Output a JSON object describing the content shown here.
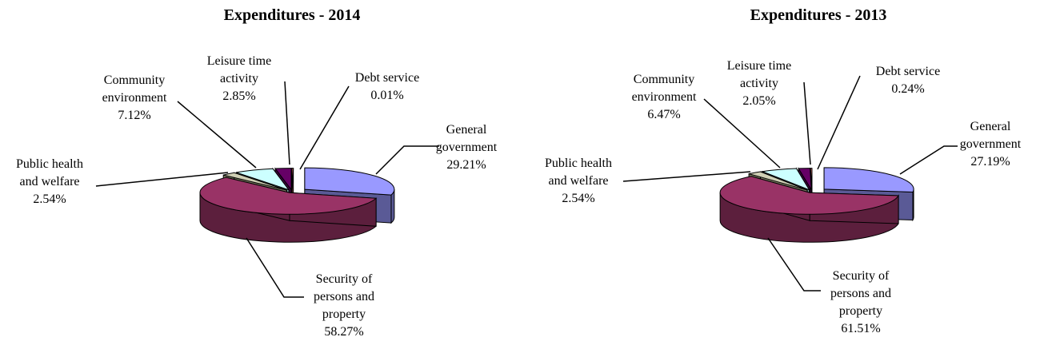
{
  "chart_data": [
    {
      "type": "pie",
      "style": "3d-exploded",
      "title": "Expenditures - 2014",
      "slices": [
        {
          "label": [
            "General",
            "government"
          ],
          "value": 29.21,
          "value_text": "29.21%",
          "color": "#9999ff",
          "side_color": "#5a5a96"
        },
        {
          "label": [
            "Security of",
            "persons and",
            "property"
          ],
          "value": 58.27,
          "value_text": "58.27%",
          "color": "#993366",
          "side_color": "#5c1f3d"
        },
        {
          "label": [
            "Public health",
            "and welfare"
          ],
          "value": 2.54,
          "value_text": "2.54%",
          "color": "#cfcfb4",
          "side_color": "#7a7a60"
        },
        {
          "label": [
            "Community",
            "environment"
          ],
          "value": 7.12,
          "value_text": "7.12%",
          "color": "#ccffff",
          "side_color": "#7fa6a6"
        },
        {
          "label": [
            "Leisure time",
            "activity"
          ],
          "value": 2.85,
          "value_text": "2.85%",
          "color": "#660066",
          "side_color": "#3d003d"
        },
        {
          "label": [
            "Debt service"
          ],
          "value": 0.01,
          "value_text": "0.01%",
          "color": "#ff8080",
          "side_color": "#994d4d"
        }
      ]
    },
    {
      "type": "pie",
      "style": "3d-exploded",
      "title": "Expenditures - 2013",
      "slices": [
        {
          "label": [
            "General",
            "government"
          ],
          "value": 27.19,
          "value_text": "27.19%",
          "color": "#9999ff",
          "side_color": "#5a5a96"
        },
        {
          "label": [
            "Security of",
            "persons and",
            "property"
          ],
          "value": 61.51,
          "value_text": "61.51%",
          "color": "#993366",
          "side_color": "#5c1f3d"
        },
        {
          "label": [
            "Public health",
            "and welfare"
          ],
          "value": 2.54,
          "value_text": "2.54%",
          "color": "#cfcfb4",
          "side_color": "#7a7a60"
        },
        {
          "label": [
            "Community",
            "environment"
          ],
          "value": 6.47,
          "value_text": "6.47%",
          "color": "#ccffff",
          "side_color": "#7fa6a6"
        },
        {
          "label": [
            "Leisure time",
            "activity"
          ],
          "value": 2.05,
          "value_text": "2.05%",
          "color": "#660066",
          "side_color": "#3d003d"
        },
        {
          "label": [
            "Debt service"
          ],
          "value": 0.24,
          "value_text": "0.24%",
          "color": "#ff8080",
          "side_color": "#994d4d"
        }
      ]
    }
  ]
}
